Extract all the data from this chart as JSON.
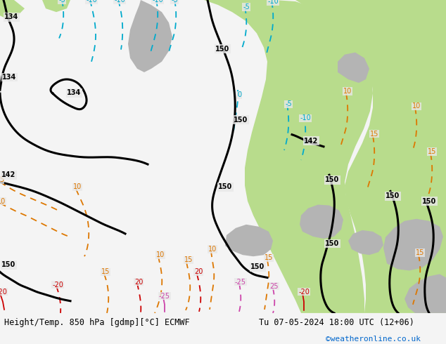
{
  "title_left": "Height/Temp. 850 hPa [gdmp][°C] ECMWF",
  "title_right": "Tu 07-05-2024 18:00 UTC (12+06)",
  "credit": "©weatheronline.co.uk",
  "credit_color": "#0066cc",
  "bg_color": "#f0f0f0",
  "sea_color": "#dce8f0",
  "green_color": "#b8dc8c",
  "gray_color": "#b4b4b4",
  "light_gray_color": "#d0d0d0",
  "figsize": [
    6.34,
    4.9
  ],
  "dpi": 100,
  "black_lw": 2.2,
  "color_lw": 1.3,
  "blue": "#00aacc",
  "orange": "#dd7700",
  "red": "#cc0000",
  "pink": "#cc44aa",
  "lime": "#66bb00"
}
